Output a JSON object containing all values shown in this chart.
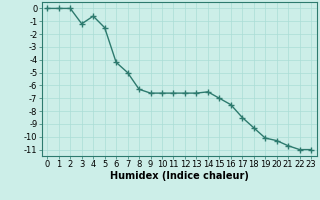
{
  "x": [
    0,
    1,
    2,
    3,
    4,
    5,
    6,
    7,
    8,
    9,
    10,
    11,
    12,
    13,
    14,
    15,
    16,
    17,
    18,
    19,
    20,
    21,
    22,
    23
  ],
  "y": [
    0,
    0,
    0,
    -1.2,
    -0.6,
    -1.5,
    -4.2,
    -5.0,
    -6.3,
    -6.6,
    -6.6,
    -6.6,
    -6.6,
    -6.6,
    -6.5,
    -7.0,
    -7.5,
    -8.5,
    -9.3,
    -10.1,
    -10.3,
    -10.7,
    -11.0,
    -11.0
  ],
  "line_color": "#2d7a6e",
  "marker": "+",
  "marker_size": 4,
  "linewidth": 1.0,
  "xlabel": "Humidex (Indice chaleur)",
  "xlim": [
    -0.5,
    23.5
  ],
  "ylim": [
    -11.5,
    0.5
  ],
  "xticks": [
    0,
    1,
    2,
    3,
    4,
    5,
    6,
    7,
    8,
    9,
    10,
    11,
    12,
    13,
    14,
    15,
    16,
    17,
    18,
    19,
    20,
    21,
    22,
    23
  ],
  "yticks": [
    0,
    -1,
    -2,
    -3,
    -4,
    -5,
    -6,
    -7,
    -8,
    -9,
    -10,
    -11
  ],
  "bg_color": "#cceee8",
  "grid_color": "#aaddd6",
  "xlabel_fontsize": 7,
  "tick_fontsize": 6
}
